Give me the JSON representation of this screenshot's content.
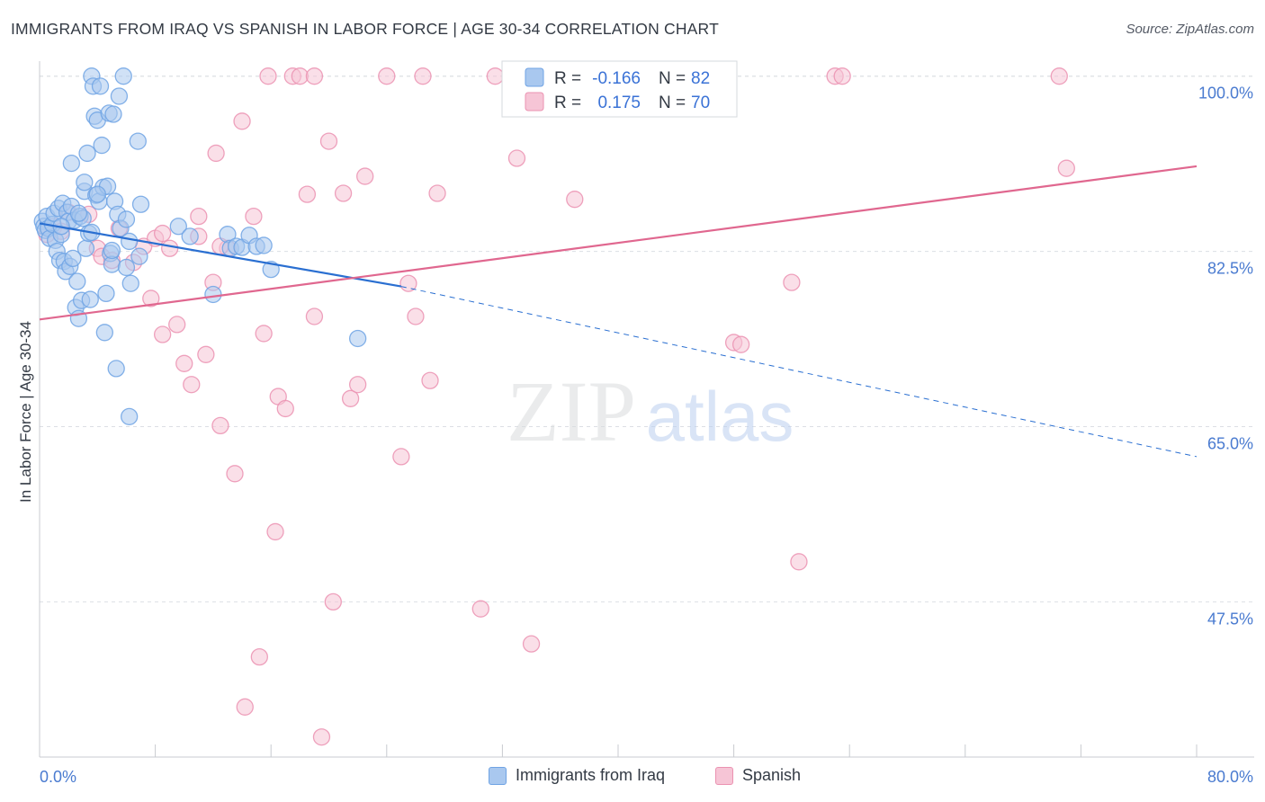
{
  "header": {
    "title": "IMMIGRANTS FROM IRAQ VS SPANISH IN LABOR FORCE | AGE 30-34 CORRELATION CHART",
    "source": "Source: ZipAtlas.com"
  },
  "watermark": {
    "zip": "ZIP",
    "atlas": "atlas"
  },
  "colors": {
    "blue": "#6fa3e4",
    "blue_fill": "#a9c8ef",
    "blue_line": "#2a6fd1",
    "pink": "#eb92b1",
    "pink_fill": "#f6c5d6",
    "pink_line": "#e0678f",
    "tick_label": "#4a7bd0",
    "grid": "#dcdfe4"
  },
  "chart_data": {
    "type": "scatter",
    "title": "IMMIGRANTS FROM IRAQ VS SPANISH IN LABOR FORCE | AGE 30-34 CORRELATION CHART",
    "xlabel": "",
    "ylabel": "In Labor Force | Age 30-34",
    "xlim": [
      0,
      80
    ],
    "ylim": [
      32,
      101.5
    ],
    "x_tick_labels": [
      "0.0%",
      "80.0%"
    ],
    "y_ticks": [
      47.5,
      65.0,
      82.5,
      100.0
    ],
    "y_tick_labels": [
      "47.5%",
      "65.0%",
      "82.5%",
      "100.0%"
    ],
    "grid": true,
    "legend_position": "top-center",
    "stats": [
      {
        "r_label": "R =",
        "r_value": "-0.166",
        "n_label": "N =",
        "n_value": "82"
      },
      {
        "r_label": "R =",
        "r_value": "0.175",
        "n_label": "N =",
        "n_value": "70"
      }
    ],
    "series": [
      {
        "name": "Immigrants from Iraq",
        "color": "#6fa3e4",
        "trend": {
          "x0": 0,
          "y0": 85.3,
          "x1": 25,
          "y1": 79.0,
          "dash_to_x": 80,
          "dash_to_y": 62.0
        },
        "points": [
          [
            0.2,
            85.5
          ],
          [
            0.3,
            85.0
          ],
          [
            0.4,
            84.6
          ],
          [
            0.5,
            86.0
          ],
          [
            0.6,
            84.8
          ],
          [
            0.7,
            83.8
          ],
          [
            0.9,
            85.2
          ],
          [
            1.0,
            86.3
          ],
          [
            1.1,
            83.6
          ],
          [
            1.2,
            82.5
          ],
          [
            1.3,
            86.8
          ],
          [
            1.4,
            81.6
          ],
          [
            1.5,
            84.2
          ],
          [
            1.6,
            87.3
          ],
          [
            1.7,
            81.5
          ],
          [
            1.8,
            80.5
          ],
          [
            1.9,
            86.4
          ],
          [
            2.0,
            85.5
          ],
          [
            2.1,
            81.0
          ],
          [
            2.2,
            87.0
          ],
          [
            2.3,
            81.8
          ],
          [
            2.4,
            85.6
          ],
          [
            2.5,
            76.9
          ],
          [
            2.6,
            79.5
          ],
          [
            2.7,
            75.8
          ],
          [
            2.8,
            86.0
          ],
          [
            2.9,
            77.6
          ],
          [
            3.0,
            85.8
          ],
          [
            3.1,
            88.5
          ],
          [
            3.2,
            82.8
          ],
          [
            3.3,
            92.3
          ],
          [
            3.4,
            84.3
          ],
          [
            3.5,
            77.7
          ],
          [
            3.6,
            100.0
          ],
          [
            3.7,
            99.0
          ],
          [
            3.8,
            96.0
          ],
          [
            3.9,
            88.1
          ],
          [
            4.0,
            95.6
          ],
          [
            4.1,
            87.5
          ],
          [
            4.2,
            99.0
          ],
          [
            4.3,
            93.1
          ],
          [
            4.4,
            88.9
          ],
          [
            4.5,
            74.4
          ],
          [
            4.6,
            78.3
          ],
          [
            4.7,
            89.0
          ],
          [
            4.8,
            96.3
          ],
          [
            4.9,
            82.3
          ],
          [
            5.0,
            81.2
          ],
          [
            5.1,
            96.2
          ],
          [
            5.2,
            87.5
          ],
          [
            5.3,
            70.8
          ],
          [
            5.4,
            86.2
          ],
          [
            5.5,
            98.0
          ],
          [
            5.6,
            84.8
          ],
          [
            5.8,
            100.0
          ],
          [
            6.0,
            85.7
          ],
          [
            6.2,
            66.0
          ],
          [
            6.3,
            79.3
          ],
          [
            6.8,
            93.5
          ],
          [
            7.0,
            87.2
          ],
          [
            6.2,
            83.5
          ],
          [
            6.9,
            82.0
          ],
          [
            2.2,
            91.3
          ],
          [
            3.1,
            89.4
          ],
          [
            4.0,
            88.2
          ],
          [
            1.5,
            85.0
          ],
          [
            2.7,
            86.3
          ],
          [
            3.6,
            84.4
          ],
          [
            5.0,
            82.6
          ],
          [
            6.0,
            80.9
          ],
          [
            9.6,
            85.0
          ],
          [
            10.4,
            84.0
          ],
          [
            12.0,
            78.2
          ],
          [
            13.0,
            84.2
          ],
          [
            13.2,
            82.8
          ],
          [
            13.6,
            83.0
          ],
          [
            14.0,
            82.9
          ],
          [
            14.5,
            84.1
          ],
          [
            15.0,
            83.0
          ],
          [
            15.5,
            83.1
          ],
          [
            16.0,
            80.7
          ],
          [
            22.0,
            73.8
          ]
        ]
      },
      {
        "name": "Spanish",
        "color": "#eb92b1",
        "trend": {
          "x0": 0,
          "y0": 75.7,
          "x1": 80,
          "y1": 91.0
        },
        "points": [
          [
            0.5,
            84.2
          ],
          [
            1.0,
            85.0
          ],
          [
            1.5,
            84.5
          ],
          [
            2.0,
            86.4
          ],
          [
            3.4,
            86.2
          ],
          [
            4.0,
            82.8
          ],
          [
            4.3,
            82.0
          ],
          [
            5.0,
            81.6
          ],
          [
            5.5,
            84.8
          ],
          [
            6.5,
            81.4
          ],
          [
            7.2,
            83.0
          ],
          [
            7.7,
            77.8
          ],
          [
            8.0,
            83.8
          ],
          [
            8.5,
            74.2
          ],
          [
            9.0,
            82.8
          ],
          [
            9.5,
            75.2
          ],
          [
            10.0,
            71.3
          ],
          [
            10.5,
            69.2
          ],
          [
            11.0,
            84.0
          ],
          [
            11.5,
            72.2
          ],
          [
            12.0,
            79.4
          ],
          [
            12.2,
            92.3
          ],
          [
            12.5,
            65.1
          ],
          [
            13.0,
            82.8
          ],
          [
            13.5,
            60.3
          ],
          [
            14.0,
            95.5
          ],
          [
            14.2,
            37.0
          ],
          [
            14.8,
            86.0
          ],
          [
            15.2,
            42.0
          ],
          [
            15.5,
            74.3
          ],
          [
            15.8,
            100.0
          ],
          [
            16.3,
            54.5
          ],
          [
            16.5,
            68.0
          ],
          [
            17.0,
            66.8
          ],
          [
            17.5,
            100.0
          ],
          [
            18.0,
            100.0
          ],
          [
            18.5,
            88.2
          ],
          [
            19.0,
            76.0
          ],
          [
            19.5,
            34.0
          ],
          [
            20.0,
            93.5
          ],
          [
            20.3,
            47.5
          ],
          [
            21.0,
            88.3
          ],
          [
            21.5,
            67.8
          ],
          [
            22.0,
            69.2
          ],
          [
            22.5,
            90.0
          ],
          [
            24.0,
            100.0
          ],
          [
            25.0,
            62.0
          ],
          [
            26.0,
            76.0
          ],
          [
            26.5,
            100.0
          ],
          [
            27.0,
            69.6
          ],
          [
            27.5,
            88.3
          ],
          [
            30.5,
            46.8
          ],
          [
            31.5,
            100.0
          ],
          [
            33.0,
            91.8
          ],
          [
            34.0,
            43.3
          ],
          [
            37.0,
            87.7
          ],
          [
            42.0,
            100.0
          ],
          [
            48.0,
            73.4
          ],
          [
            48.5,
            73.2
          ],
          [
            52.0,
            79.4
          ],
          [
            52.5,
            51.5
          ],
          [
            55.0,
            100.0
          ],
          [
            55.5,
            100.0
          ],
          [
            70.5,
            100.0
          ],
          [
            71.0,
            90.8
          ],
          [
            19.0,
            100.0
          ],
          [
            11.0,
            86.0
          ],
          [
            12.5,
            83.0
          ],
          [
            8.5,
            84.3
          ],
          [
            25.5,
            79.3
          ]
        ]
      }
    ]
  }
}
